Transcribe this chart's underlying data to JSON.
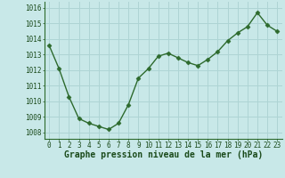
{
  "x": [
    0,
    1,
    2,
    3,
    4,
    5,
    6,
    7,
    8,
    9,
    10,
    11,
    12,
    13,
    14,
    15,
    16,
    17,
    18,
    19,
    20,
    21,
    22,
    23
  ],
  "y": [
    1013.6,
    1012.1,
    1010.3,
    1008.9,
    1008.6,
    1008.4,
    1008.2,
    1008.6,
    1009.8,
    1011.5,
    1012.1,
    1012.9,
    1013.1,
    1012.8,
    1012.5,
    1012.3,
    1012.7,
    1013.2,
    1013.9,
    1014.4,
    1014.8,
    1015.7,
    1014.9,
    1014.5
  ],
  "line_color": "#2d6a2d",
  "marker": "D",
  "marker_size": 2.5,
  "bg_color": "#c8e8e8",
  "grid_color": "#aed4d4",
  "xlabel": "Graphe pression niveau de la mer (hPa)",
  "xlabel_color": "#1a4a1a",
  "xlabel_fontsize": 7.0,
  "ylabel_ticks": [
    1008,
    1009,
    1010,
    1011,
    1012,
    1013,
    1014,
    1015,
    1016
  ],
  "ylim": [
    1007.6,
    1016.4
  ],
  "xlim": [
    -0.5,
    23.5
  ],
  "tick_fontsize": 5.5,
  "tick_color": "#1a4a1a",
  "spine_color": "#2d6a2d"
}
